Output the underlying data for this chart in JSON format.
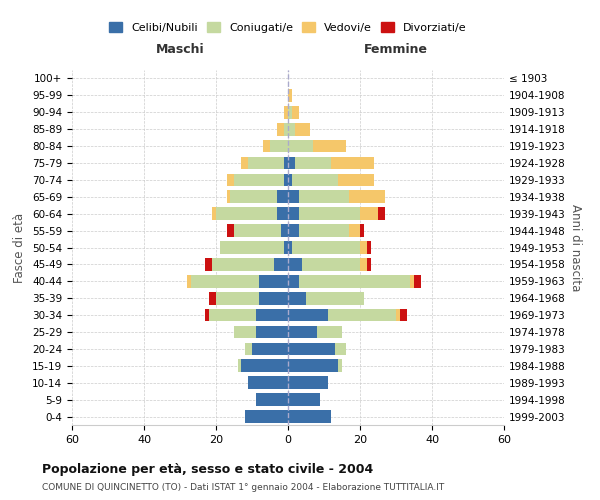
{
  "age_groups": [
    "0-4",
    "5-9",
    "10-14",
    "15-19",
    "20-24",
    "25-29",
    "30-34",
    "35-39",
    "40-44",
    "45-49",
    "50-54",
    "55-59",
    "60-64",
    "65-69",
    "70-74",
    "75-79",
    "80-84",
    "85-89",
    "90-94",
    "95-99",
    "100+"
  ],
  "birth_years": [
    "1999-2003",
    "1994-1998",
    "1989-1993",
    "1984-1988",
    "1979-1983",
    "1974-1978",
    "1969-1973",
    "1964-1968",
    "1959-1963",
    "1954-1958",
    "1949-1953",
    "1944-1948",
    "1939-1943",
    "1934-1938",
    "1929-1933",
    "1924-1928",
    "1919-1923",
    "1914-1918",
    "1909-1913",
    "1904-1908",
    "≤ 1903"
  ],
  "male": {
    "celibi": [
      12,
      9,
      11,
      13,
      10,
      9,
      9,
      8,
      8,
      4,
      1,
      2,
      3,
      3,
      1,
      1,
      0,
      0,
      0,
      0,
      0
    ],
    "coniugati": [
      0,
      0,
      0,
      1,
      2,
      6,
      13,
      12,
      19,
      17,
      18,
      13,
      17,
      13,
      14,
      10,
      5,
      1,
      0,
      0,
      0
    ],
    "vedovi": [
      0,
      0,
      0,
      0,
      0,
      0,
      0,
      0,
      1,
      0,
      0,
      0,
      1,
      1,
      2,
      2,
      2,
      2,
      1,
      0,
      0
    ],
    "divorziati": [
      0,
      0,
      0,
      0,
      0,
      0,
      1,
      2,
      0,
      2,
      0,
      2,
      0,
      0,
      0,
      0,
      0,
      0,
      0,
      0,
      0
    ]
  },
  "female": {
    "nubili": [
      12,
      9,
      11,
      14,
      13,
      8,
      11,
      5,
      3,
      4,
      1,
      3,
      3,
      3,
      1,
      2,
      0,
      0,
      0,
      0,
      0
    ],
    "coniugate": [
      0,
      0,
      0,
      1,
      3,
      7,
      19,
      16,
      31,
      16,
      19,
      14,
      17,
      14,
      13,
      10,
      7,
      2,
      1,
      0,
      0
    ],
    "vedove": [
      0,
      0,
      0,
      0,
      0,
      0,
      1,
      0,
      1,
      2,
      2,
      3,
      5,
      10,
      10,
      12,
      9,
      4,
      2,
      1,
      0
    ],
    "divorziate": [
      0,
      0,
      0,
      0,
      0,
      0,
      2,
      0,
      2,
      1,
      1,
      1,
      2,
      0,
      0,
      0,
      0,
      0,
      0,
      0,
      0
    ]
  },
  "colors": {
    "celibi_nubili": "#3a6fa8",
    "coniugati": "#c5d9a0",
    "vedovi": "#f5c76a",
    "divorziati": "#cc1111"
  },
  "xlim": 60,
  "title": "Popolazione per età, sesso e stato civile - 2004",
  "subtitle": "COMUNE DI QUINCINETTO (TO) - Dati ISTAT 1° gennaio 2004 - Elaborazione TUTTITALIA.IT",
  "ylabel_left": "Fasce di età",
  "ylabel_right": "Anni di nascita",
  "xlabel_male": "Maschi",
  "xlabel_female": "Femmine",
  "legend_labels": [
    "Celibi/Nubili",
    "Coniugati/e",
    "Vedovi/e",
    "Divorziati/e"
  ],
  "background_color": "#ffffff",
  "grid_color": "#cccccc"
}
